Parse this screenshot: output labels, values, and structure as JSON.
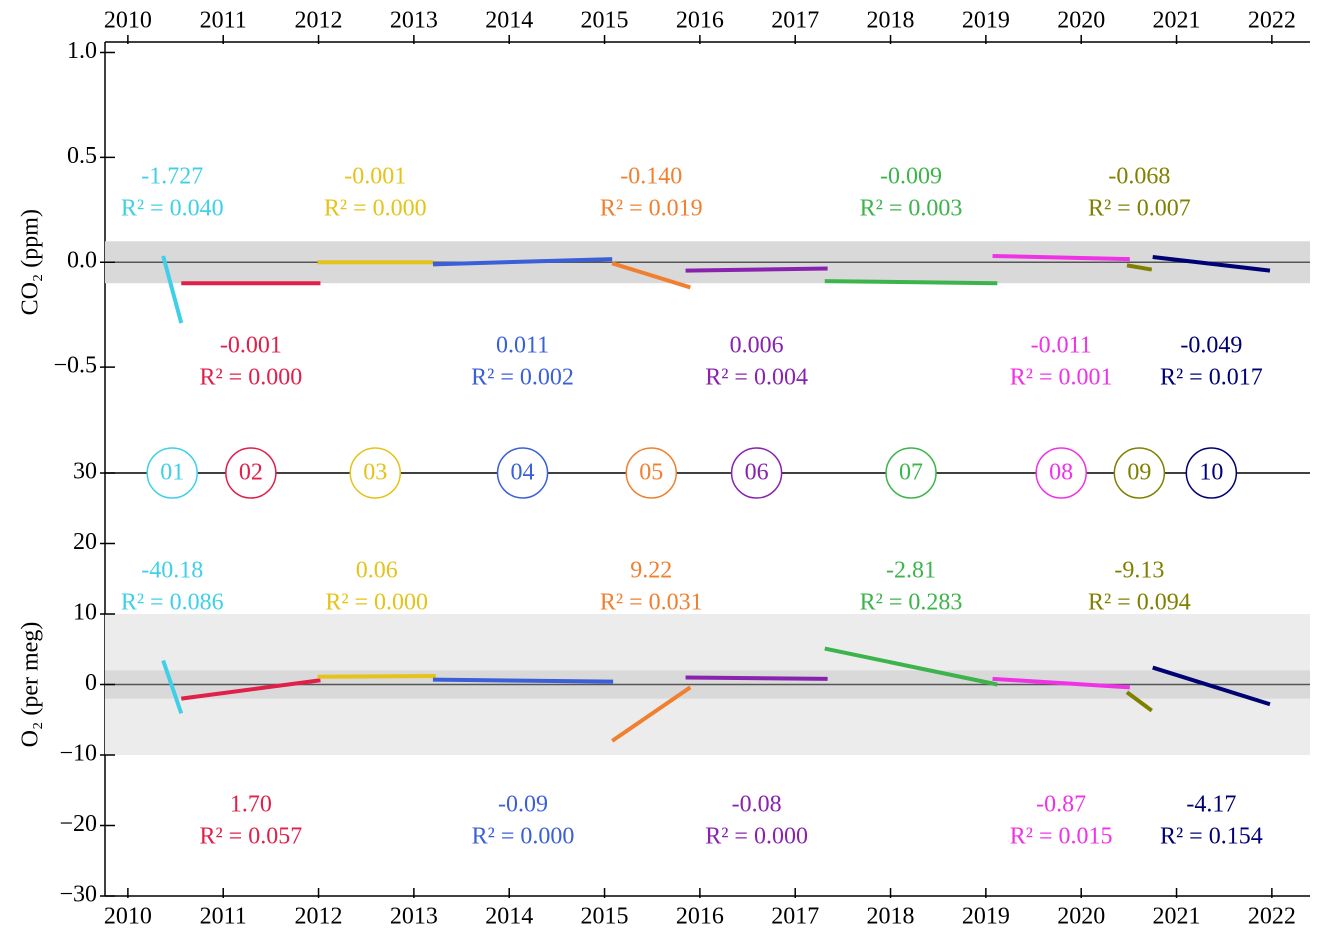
{
  "chart_data": [
    {
      "type": "line",
      "ylabel": "CO₂ (ppm)",
      "xlim": [
        2009.76,
        2022.4
      ],
      "xticks": [
        2010,
        2011,
        2012,
        2013,
        2014,
        2015,
        2016,
        2017,
        2018,
        2019,
        2020,
        2021,
        2022
      ],
      "ylim": [
        -1,
        1.05
      ],
      "yticks": [
        {
          "value": 1,
          "label": "1.0"
        },
        0.5,
        {
          "value": 0,
          "label": "0.0"
        },
        {
          "value": -0.5,
          "label": "−0.5"
        }
      ],
      "bands": [
        {
          "range": [
            -0.1,
            0.1
          ],
          "color": "#d9d9d9"
        }
      ],
      "series": [
        {
          "name": "01",
          "color": "#3fd0e8",
          "x": [
            2010.37,
            2010.56
          ],
          "values": [
            0.03,
            -0.29
          ],
          "slope": "-1.727",
          "r2": "R² = 0.040"
        },
        {
          "name": "02",
          "color": "#e0204a",
          "x": [
            2010.56,
            2012.02
          ],
          "values": [
            -0.1,
            -0.1
          ],
          "slope": "-0.001",
          "r2": "R² = 0.000"
        },
        {
          "name": "03",
          "color": "#e5c31a",
          "x": [
            2011.99,
            2013.2
          ],
          "values": [
            0.0,
            0.0
          ],
          "slope": "-0.001",
          "r2": "R² = 0.000"
        },
        {
          "name": "04",
          "color": "#3a5fd8",
          "x": [
            2013.2,
            2015.08
          ],
          "values": [
            -0.01,
            0.015
          ],
          "slope": "0.011",
          "r2": "R² = 0.002"
        },
        {
          "name": "05",
          "color": "#f08030",
          "x": [
            2015.08,
            2015.9
          ],
          "values": [
            -0.005,
            -0.12
          ],
          "slope": "-0.140",
          "r2": "R² = 0.019"
        },
        {
          "name": "06",
          "color": "#8a22b0",
          "x": [
            2015.85,
            2017.34
          ],
          "values": [
            -0.04,
            -0.03
          ],
          "slope": "0.006",
          "r2": "R² = 0.004"
        },
        {
          "name": "07",
          "color": "#3cb44b",
          "x": [
            2017.31,
            2019.12
          ],
          "values": [
            -0.09,
            -0.1
          ],
          "slope": "-0.009",
          "r2": "R² = 0.003"
        },
        {
          "name": "08",
          "color": "#f032e6",
          "x": [
            2019.07,
            2020.51
          ],
          "values": [
            0.03,
            0.015
          ],
          "slope": "-0.011",
          "r2": "R² = 0.001"
        },
        {
          "name": "09",
          "color": "#808000",
          "x": [
            2020.48,
            2020.74
          ],
          "values": [
            -0.015,
            -0.035
          ],
          "slope": "-0.068",
          "r2": "R² = 0.007"
        },
        {
          "name": "10",
          "color": "#000075",
          "x": [
            2020.75,
            2021.98
          ],
          "values": [
            0.025,
            -0.04
          ],
          "slope": "-0.049",
          "r2": "R² = 0.017"
        }
      ]
    },
    {
      "type": "line",
      "ylabel": "O₂ (per meg)",
      "xlim": [
        2009.76,
        2022.4
      ],
      "xticks": [
        2010,
        2011,
        2012,
        2013,
        2014,
        2015,
        2016,
        2017,
        2018,
        2019,
        2020,
        2021,
        2022
      ],
      "ylim": [
        -30,
        30
      ],
      "yticks": [
        30,
        20,
        10,
        0,
        {
          "value": -10,
          "label": "−10"
        },
        {
          "value": -20,
          "label": "−20"
        },
        {
          "value": -30,
          "label": "−30"
        }
      ],
      "bands": [
        {
          "range": [
            -10,
            10
          ],
          "color": "#ececec"
        },
        {
          "range": [
            -2,
            2
          ],
          "color": "#d9d9d9"
        }
      ],
      "series": [
        {
          "color": "#3fd0e8",
          "x": [
            2010.37,
            2010.56
          ],
          "values": [
            3.4,
            -4.1
          ],
          "slope": "-40.18",
          "r2": "R² = 0.086"
        },
        {
          "color": "#e0204a",
          "x": [
            2010.56,
            2012.02
          ],
          "values": [
            -2.0,
            0.6
          ],
          "slope": "1.70",
          "r2": "R² = 0.057"
        },
        {
          "color": "#e5c31a",
          "x": [
            2011.99,
            2013.23
          ],
          "values": [
            1.1,
            1.2
          ],
          "slope": "0.06",
          "r2": "R² = 0.000"
        },
        {
          "color": "#3a5fd8",
          "x": [
            2013.2,
            2015.09
          ],
          "values": [
            0.7,
            0.4
          ],
          "slope": "-0.09",
          "r2": "R² = 0.000"
        },
        {
          "color": "#f08030",
          "x": [
            2015.08,
            2015.9
          ],
          "values": [
            -8.0,
            -0.4
          ],
          "slope": "9.22",
          "r2": "R² = 0.031"
        },
        {
          "color": "#8a22b0",
          "x": [
            2015.85,
            2017.34
          ],
          "values": [
            1.0,
            0.8
          ],
          "slope": "-0.08",
          "r2": "R² = 0.000"
        },
        {
          "color": "#3cb44b",
          "x": [
            2017.31,
            2019.12
          ],
          "values": [
            5.1,
            0.0
          ],
          "slope": "-2.81",
          "r2": "R² = 0.283"
        },
        {
          "color": "#f032e6",
          "x": [
            2019.07,
            2020.51
          ],
          "values": [
            0.8,
            -0.4
          ],
          "slope": "-0.87",
          "r2": "R² = 0.015"
        },
        {
          "color": "#808000",
          "x": [
            2020.48,
            2020.74
          ],
          "values": [
            -1.1,
            -3.7
          ],
          "slope": "-9.13",
          "r2": "R² = 0.094"
        },
        {
          "color": "#000075",
          "x": [
            2020.75,
            2021.98
          ],
          "values": [
            2.4,
            -2.8
          ],
          "slope": "-4.17",
          "r2": "R² = 0.154"
        }
      ]
    }
  ]
}
